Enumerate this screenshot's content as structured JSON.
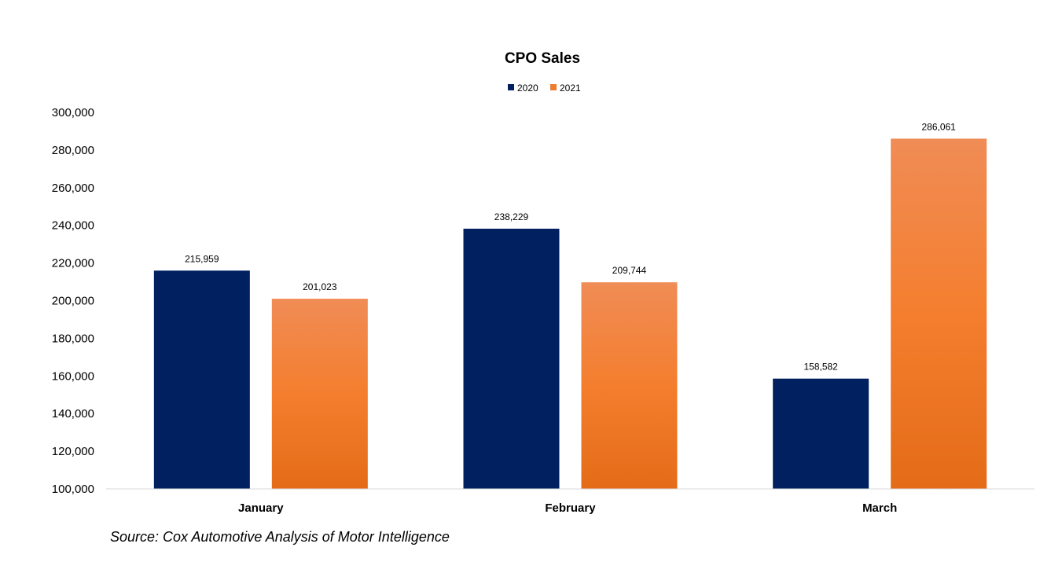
{
  "chart_data": {
    "type": "bar",
    "title": "CPO Sales",
    "categories": [
      "January",
      "February",
      "March"
    ],
    "series": [
      {
        "name": "2020",
        "values": [
          215959,
          238229,
          158582
        ],
        "color": "#002060"
      },
      {
        "name": "2021",
        "values": [
          201023,
          209744,
          286061
        ],
        "color": "#ED7D31"
      }
    ],
    "data_labels": [
      [
        "215,959",
        "238,229",
        "158,582"
      ],
      [
        "201,023",
        "209,744",
        "286,061"
      ]
    ],
    "ylim": [
      100000,
      300000
    ],
    "y_ticks": [
      100000,
      120000,
      140000,
      160000,
      180000,
      200000,
      220000,
      240000,
      260000,
      280000,
      300000
    ],
    "y_tick_labels": [
      "100,000",
      "120,000",
      "140,000",
      "160,000",
      "180,000",
      "200,000",
      "220,000",
      "240,000",
      "260,000",
      "280,000",
      "300,000"
    ],
    "xlabel": "",
    "ylabel": "",
    "grid": false,
    "legend_position": "top"
  },
  "source_note": "Source: Cox Automotive Analysis of Motor Intelligence"
}
